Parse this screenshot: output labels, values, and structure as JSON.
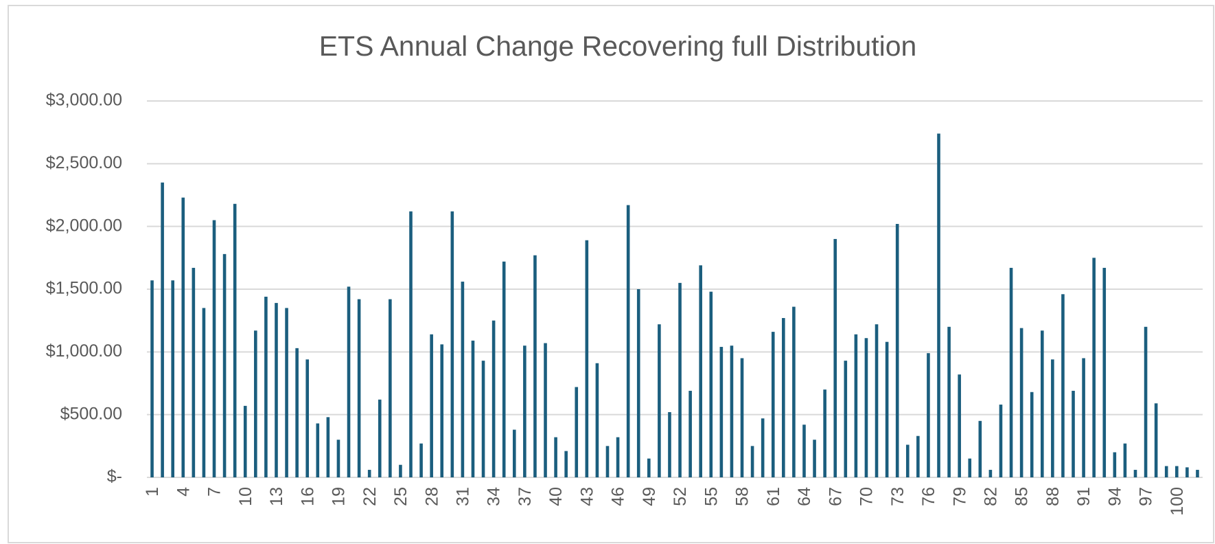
{
  "chart_data": {
    "type": "bar",
    "title": "ETS Annual Change Recovering full Distribution",
    "categories": [
      "1",
      null,
      null,
      "4",
      null,
      null,
      "7",
      null,
      null,
      "10",
      null,
      null,
      "13",
      null,
      null,
      "16",
      null,
      null,
      "19",
      null,
      null,
      "22",
      null,
      null,
      "25",
      null,
      null,
      "28",
      null,
      null,
      "31",
      null,
      null,
      "34",
      null,
      null,
      "37",
      null,
      null,
      "40",
      null,
      null,
      "43",
      null,
      null,
      "46",
      null,
      null,
      "49",
      null,
      null,
      "52",
      null,
      null,
      "55",
      null,
      null,
      "58",
      null,
      null,
      "61",
      null,
      null,
      "64",
      null,
      null,
      "67",
      null,
      null,
      "70",
      null,
      null,
      "73",
      null,
      null,
      "76",
      null,
      null,
      "79",
      null,
      null,
      "82",
      null,
      null,
      "85",
      null,
      null,
      "88",
      null,
      null,
      "91",
      null,
      null,
      "94",
      null,
      null,
      "97",
      null,
      null,
      "100",
      null,
      null
    ],
    "values": [
      1570,
      2350,
      1570,
      2230,
      1670,
      1350,
      2050,
      1780,
      2180,
      570,
      1170,
      1440,
      1390,
      1350,
      1030,
      940,
      430,
      480,
      300,
      1520,
      1420,
      60,
      620,
      1420,
      100,
      2120,
      270,
      1140,
      1060,
      2120,
      1560,
      1090,
      930,
      1250,
      1720,
      380,
      1050,
      1770,
      1070,
      320,
      210,
      720,
      1890,
      910,
      250,
      320,
      2170,
      1500,
      150,
      1220,
      520,
      1550,
      690,
      1690,
      1480,
      1040,
      1050,
      950,
      250,
      470,
      1160,
      1270,
      1360,
      420,
      300,
      700,
      1900,
      930,
      1140,
      1110,
      1220,
      1080,
      2020,
      260,
      330,
      990,
      2740,
      1200,
      820,
      150,
      450,
      60,
      580,
      1670,
      1190,
      680,
      1170,
      940,
      1460,
      690,
      950,
      1750,
      1670,
      200,
      270,
      60,
      1200,
      590,
      90,
      90,
      80,
      60
    ],
    "color": "#1b5e7e",
    "ylim": [
      0,
      3000
    ],
    "yticks": [
      {
        "value": 0,
        "label": "$-"
      },
      {
        "value": 500,
        "label": "$500.00"
      },
      {
        "value": 1000,
        "label": "$1,000.00"
      },
      {
        "value": 1500,
        "label": "$1,500.00"
      },
      {
        "value": 2000,
        "label": "$2,000.00"
      },
      {
        "value": 2500,
        "label": "$2,500.00"
      },
      {
        "value": 3000,
        "label": "$3,000.00"
      }
    ],
    "grid": true
  }
}
